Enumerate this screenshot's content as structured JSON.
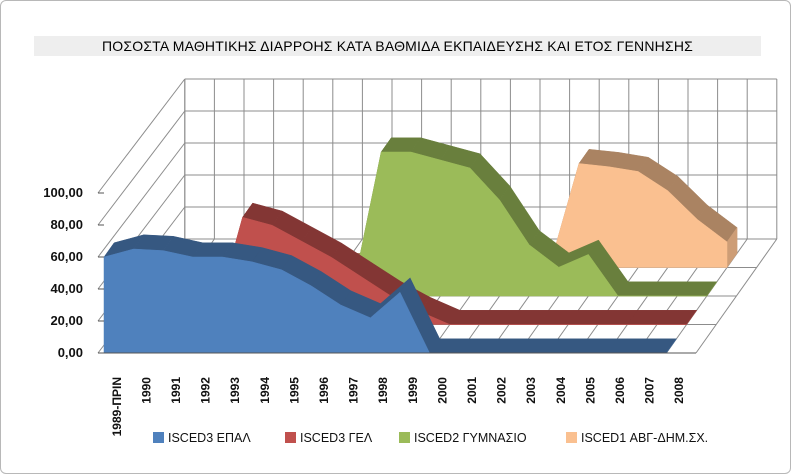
{
  "chart_data": {
    "type": "area",
    "title": "ΠΟΣΟΣΤΑ ΜΑΘΗΤΙΚΗΣ ΔΙΑΡΡΟΗΣ ΚΑΤΑ ΒΑΘΜΙΔΑ ΕΚΠΑΙΔΕΥΣΗΣ ΚΑΙ ΕΤΟΣ ΓΕΝΝΗΣΗΣ",
    "xlabel": "",
    "ylabel": "",
    "ylim": [
      0,
      100
    ],
    "y_ticks": [
      "0,00",
      "20,00",
      "40,00",
      "60,00",
      "80,00",
      "100,00"
    ],
    "grid": true,
    "legend_position": "bottom",
    "categories": [
      "1989-ΠΡΙΝ",
      "1990",
      "1991",
      "1992",
      "1993",
      "1994",
      "1995",
      "1996",
      "1997",
      "1998",
      "1999",
      "2000",
      "2001",
      "2002",
      "2003",
      "2004",
      "2005",
      "2006",
      "2007",
      "2008"
    ],
    "series": [
      {
        "name": "ISCED3   ΕΠΑΛ",
        "color": "#4f81bd",
        "values": [
          60,
          65,
          64,
          60,
          60,
          57,
          52,
          42,
          30,
          22,
          38,
          0,
          0,
          0,
          0,
          0,
          0,
          0,
          0,
          0
        ]
      },
      {
        "name": "ISCED3 ΓΕΛ",
        "color": "#c0504d",
        "values": [
          0,
          0,
          0,
          0,
          67,
          62,
          52,
          42,
          30,
          18,
          8,
          0,
          0,
          0,
          0,
          0,
          0,
          0,
          0,
          0
        ]
      },
      {
        "name": "ISCED2 ΓΥΜΝΑΣΙΟ",
        "color": "#9bbb59",
        "values": [
          0,
          0,
          0,
          0,
          0,
          0,
          0,
          0,
          90,
          90,
          85,
          80,
          60,
          32,
          18,
          26,
          0,
          0,
          0,
          0
        ]
      },
      {
        "name": "ISCED1 ΑΒΓ-ΔΗΜ.ΣΧ.",
        "color": "#fac090",
        "values": [
          0,
          0,
          0,
          0,
          0,
          0,
          0,
          0,
          0,
          0,
          0,
          0,
          0,
          0,
          65,
          63,
          60,
          48,
          30,
          16
        ]
      }
    ]
  }
}
